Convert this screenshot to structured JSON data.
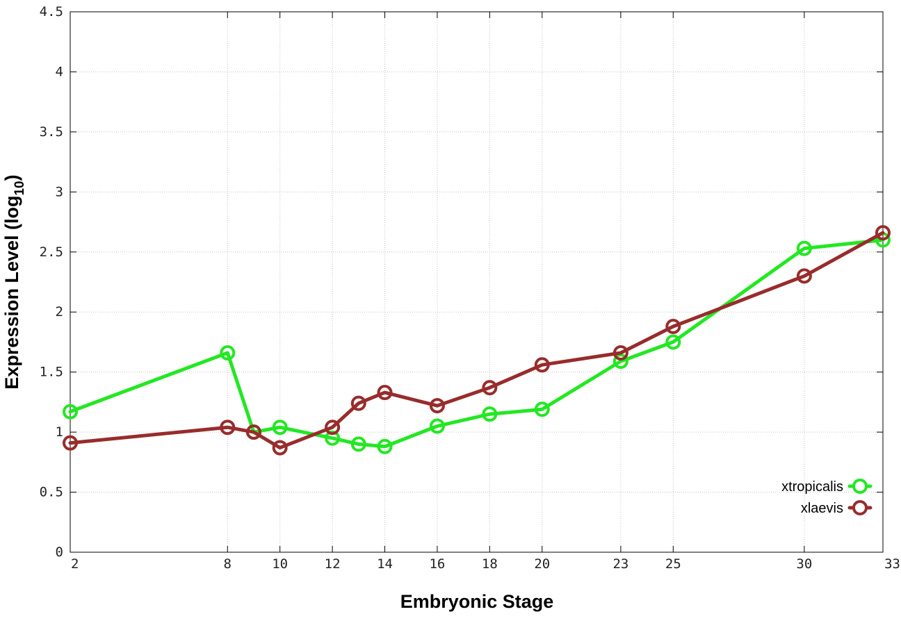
{
  "chart_data": {
    "type": "line",
    "xlabel": "Embryonic Stage",
    "ylabel_main": "Expression Level (log",
    "ylabel_sub": "10",
    "ylabel_close": ")",
    "xlim": [
      2,
      33
    ],
    "ylim": [
      0,
      4.5
    ],
    "x_ticks": [
      2,
      8,
      10,
      12,
      14,
      16,
      18,
      20,
      23,
      25,
      30,
      33
    ],
    "y_ticks": [
      0,
      0.5,
      1,
      1.5,
      2,
      2.5,
      3,
      3.5,
      4,
      4.5
    ],
    "grid": true,
    "legend_position": "bottom-right",
    "series": [
      {
        "name": "xtropicalis",
        "color": "#22e822",
        "x": [
          2,
          8,
          9,
          10,
          12,
          13,
          14,
          16,
          18,
          20,
          23,
          25,
          30,
          33
        ],
        "y": [
          1.17,
          1.66,
          1.0,
          1.04,
          0.95,
          0.9,
          0.88,
          1.05,
          1.15,
          1.19,
          1.59,
          1.75,
          2.53,
          2.6
        ]
      },
      {
        "name": "xlaevis",
        "color": "#982c2c",
        "x": [
          2,
          8,
          9,
          10,
          12,
          13,
          14,
          16,
          18,
          20,
          23,
          25,
          30,
          33
        ],
        "y": [
          0.91,
          1.04,
          1.0,
          0.87,
          1.04,
          1.24,
          1.33,
          1.22,
          1.37,
          1.56,
          1.66,
          1.88,
          2.3,
          2.66
        ]
      }
    ]
  }
}
